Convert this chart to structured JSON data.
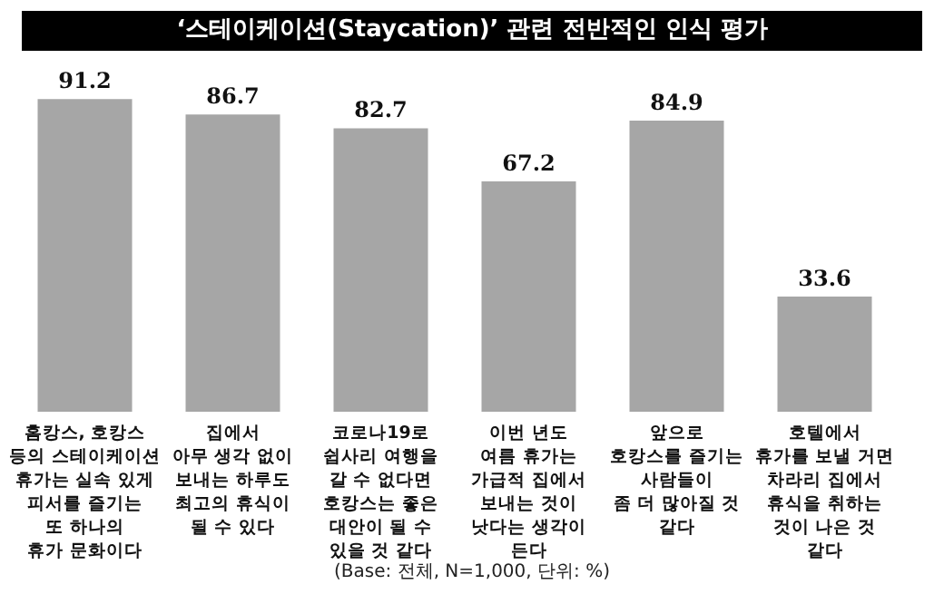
{
  "chart_data": {
    "type": "bar",
    "title": "‘스테이케이션(Staycation)’ 관련 전반적인 인식 평가",
    "categories": [
      "홈캉스, 호캉스\n등의 스테이케이션\n휴가는 실속 있게\n피서를 즐기는\n또 하나의\n휴가 문화이다",
      "집에서\n아무 생각 없이\n보내는 하루도\n최고의 휴식이\n될 수 있다",
      "코로나19로\n쉽사리 여행을\n갈 수 없다면\n호캉스는 좋은\n대안이 될 수\n있을 것 같다",
      "이번 년도\n여름 휴가는\n가급적 집에서\n보내는 것이\n낫다는 생각이\n든다",
      "앞으로\n호캉스를 즐기는\n사람들이\n좀 더 많아질 것\n같다",
      "호텔에서\n휴가를 보낼 거면\n차라리 집에서\n휴식을 취하는\n것이 나은 것\n같다"
    ],
    "values": [
      91.2,
      86.7,
      82.7,
      67.2,
      84.9,
      33.6
    ],
    "color": "#a6a6a6",
    "data_labels": true,
    "annotations": [
      "(Base: 전체, N=1,000, 단위: %)"
    ]
  }
}
